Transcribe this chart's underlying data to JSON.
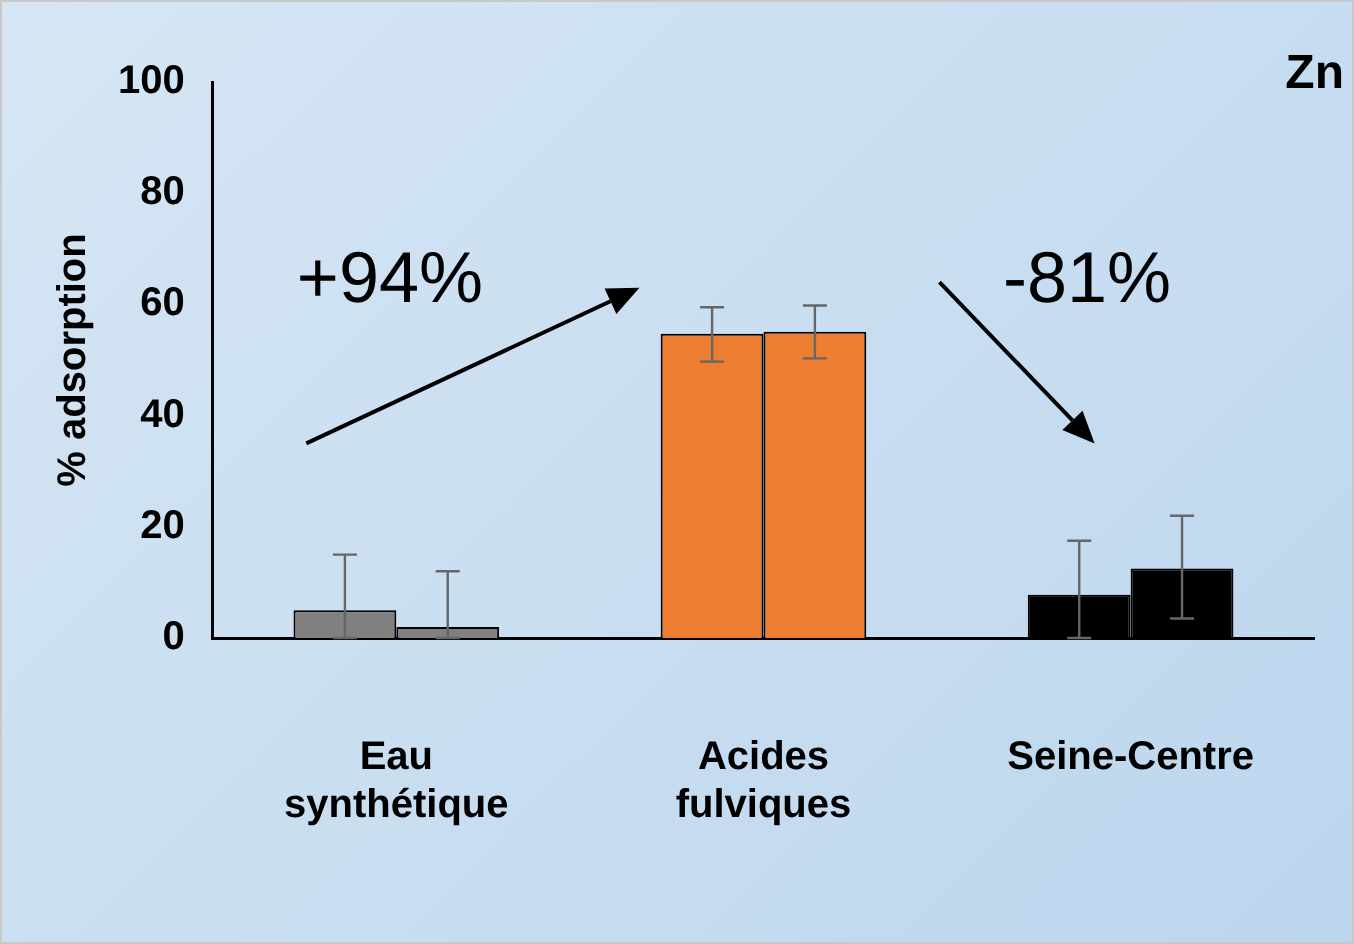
{
  "chart_data": {
    "type": "bar",
    "title": "Zn",
    "ylabel": "% adsorption",
    "categories": [
      "Eau synthétique",
      "Acides fulviques",
      "Seine-Centre"
    ],
    "series": [
      {
        "colors": [
          "#808080",
          "#ed7d31",
          "#000000"
        ],
        "values": [
          5,
          54.7,
          7.8
        ],
        "errors": [
          [
            0,
            15
          ],
          [
            49.7,
            59.5
          ],
          [
            0,
            17.5
          ]
        ]
      },
      {
        "colors": [
          "#808080",
          "#ed7d31",
          "#000000"
        ],
        "values": [
          2,
          55.1,
          12.5
        ],
        "errors": [
          [
            0,
            12
          ],
          [
            50.3,
            59.8
          ],
          [
            3.5,
            22
          ]
        ]
      }
    ],
    "ylim": [
      0,
      100
    ],
    "yticks": [
      0,
      20,
      40,
      60,
      80,
      100
    ],
    "grid": false,
    "legend": false,
    "annotations": [
      "+94%",
      "-81%"
    ]
  }
}
